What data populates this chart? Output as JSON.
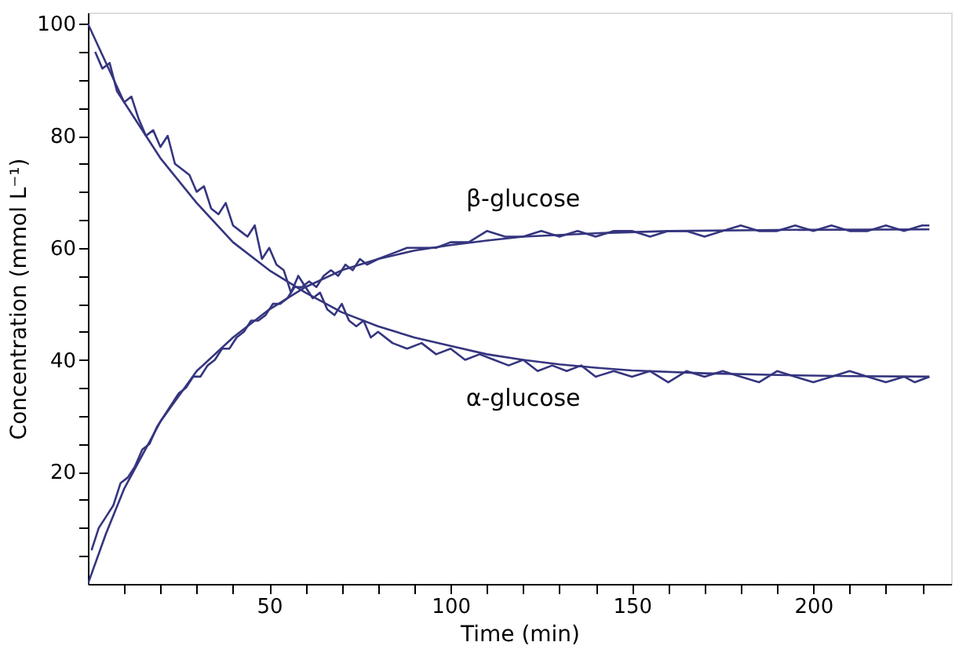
{
  "chart_data": {
    "type": "line",
    "xlabel": "Time (min)",
    "ylabel": "Concentration (mmol L⁻¹)",
    "xlim": [
      0,
      238
    ],
    "ylim": [
      0,
      102
    ],
    "xticks": [
      {
        "value": 10,
        "label": null
      },
      {
        "value": 20,
        "label": null
      },
      {
        "value": 30,
        "label": null
      },
      {
        "value": 40,
        "label": null
      },
      50,
      {
        "value": 60,
        "label": null
      },
      {
        "value": 70,
        "label": null
      },
      {
        "value": 80,
        "label": null
      },
      {
        "value": 90,
        "label": null
      },
      100,
      {
        "value": 110,
        "label": null
      },
      {
        "value": 120,
        "label": null
      },
      {
        "value": 130,
        "label": null
      },
      {
        "value": 140,
        "label": null
      },
      150,
      {
        "value": 160,
        "label": null
      },
      {
        "value": 170,
        "label": null
      },
      {
        "value": 180,
        "label": null
      },
      {
        "value": 190,
        "label": null
      },
      200,
      {
        "value": 210,
        "label": null
      },
      {
        "value": 220,
        "label": null
      },
      {
        "value": 230,
        "label": null
      }
    ],
    "yticks": [
      {
        "value": 5,
        "label": null
      },
      {
        "value": 10,
        "label": null
      },
      {
        "value": 15,
        "label": null
      },
      20,
      {
        "value": 25,
        "label": null
      },
      {
        "value": 30,
        "label": null
      },
      {
        "value": 35,
        "label": null
      },
      40,
      {
        "value": 45,
        "label": null
      },
      {
        "value": 50,
        "label": null
      },
      {
        "value": 55,
        "label": null
      },
      60,
      {
        "value": 65,
        "label": null
      },
      {
        "value": 70,
        "label": null
      },
      {
        "value": 75,
        "label": null
      },
      80,
      {
        "value": 85,
        "label": null
      },
      {
        "value": 90,
        "label": null
      },
      {
        "value": 95,
        "label": null
      },
      100
    ],
    "grid": false,
    "legend": false,
    "marker": "none",
    "line_style": "solid",
    "series": [
      {
        "name": "α-glucose",
        "color": "#35357f",
        "x": [
          2,
          4,
          6,
          8,
          10,
          12,
          14,
          16,
          18,
          20,
          22,
          24,
          26,
          28,
          30,
          32,
          34,
          36,
          38,
          40,
          42,
          44,
          46,
          48,
          50,
          52,
          54,
          56,
          58,
          60,
          62,
          64,
          66,
          68,
          70,
          72,
          74,
          76,
          78,
          80,
          84,
          88,
          92,
          96,
          100,
          104,
          108,
          112,
          116,
          120,
          124,
          128,
          132,
          136,
          140,
          145,
          150,
          155,
          160,
          165,
          170,
          175,
          180,
          185,
          190,
          195,
          200,
          205,
          210,
          215,
          220,
          225,
          228,
          232
        ],
        "values": [
          95,
          92,
          93,
          88,
          86,
          87,
          83,
          80,
          81,
          78,
          80,
          75,
          74,
          73,
          70,
          71,
          67,
          66,
          68,
          64,
          63,
          62,
          64,
          58,
          60,
          57,
          56,
          52,
          55,
          53,
          51,
          52,
          49,
          48,
          50,
          47,
          46,
          47,
          44,
          45,
          43,
          42,
          43,
          41,
          42,
          40,
          41,
          40,
          39,
          40,
          38,
          39,
          38,
          39,
          37,
          38,
          37,
          38,
          36,
          38,
          37,
          38,
          37,
          36,
          38,
          37,
          36,
          37,
          38,
          37,
          36,
          37,
          36,
          37
        ]
      },
      {
        "name": "β-glucose",
        "color": "#35357f",
        "x": [
          1,
          3,
          5,
          7,
          9,
          11,
          13,
          15,
          17,
          19,
          21,
          23,
          25,
          27,
          29,
          31,
          33,
          35,
          37,
          39,
          41,
          43,
          45,
          47,
          49,
          51,
          53,
          55,
          57,
          59,
          61,
          63,
          65,
          67,
          69,
          71,
          73,
          75,
          77,
          80,
          84,
          88,
          92,
          96,
          100,
          105,
          110,
          115,
          120,
          125,
          130,
          135,
          140,
          145,
          150,
          155,
          160,
          165,
          170,
          175,
          180,
          185,
          190,
          195,
          200,
          205,
          210,
          215,
          220,
          225,
          230,
          232
        ],
        "values": [
          6,
          10,
          12,
          14,
          18,
          19,
          21,
          24,
          25,
          28,
          30,
          32,
          34,
          35,
          37,
          37,
          39,
          40,
          42,
          42,
          44,
          45,
          47,
          47,
          48,
          50,
          50,
          51,
          53,
          53,
          54,
          53,
          55,
          56,
          55,
          57,
          56,
          58,
          57,
          58,
          59,
          60,
          60,
          60,
          61,
          61,
          63,
          62,
          62,
          63,
          62,
          63,
          62,
          63,
          63,
          62,
          63,
          63,
          62,
          63,
          64,
          63,
          63,
          64,
          63,
          64,
          63,
          63,
          64,
          63,
          64,
          64
        ]
      },
      {
        "color": "#35357f",
        "x": [
          0,
          10,
          20,
          30,
          40,
          50,
          60,
          70,
          80,
          90,
          100,
          110,
          120,
          130,
          140,
          150,
          170,
          190,
          210,
          232
        ],
        "values": [
          100,
          86,
          76,
          68,
          61,
          56,
          52,
          48.5,
          46,
          44,
          42.5,
          41,
          40,
          39.2,
          38.6,
          38.1,
          37.6,
          37.3,
          37.1,
          37
        ]
      },
      {
        "color": "#35357f",
        "x": [
          0,
          5,
          10,
          15,
          20,
          30,
          40,
          50,
          60,
          70,
          80,
          90,
          100,
          110,
          120,
          140,
          160,
          190,
          232
        ],
        "values": [
          0,
          9,
          17,
          23,
          29,
          38,
          44,
          49,
          53,
          56,
          58,
          59.5,
          60.5,
          61.3,
          62,
          62.6,
          63,
          63.2,
          63.3
        ]
      }
    ]
  }
}
